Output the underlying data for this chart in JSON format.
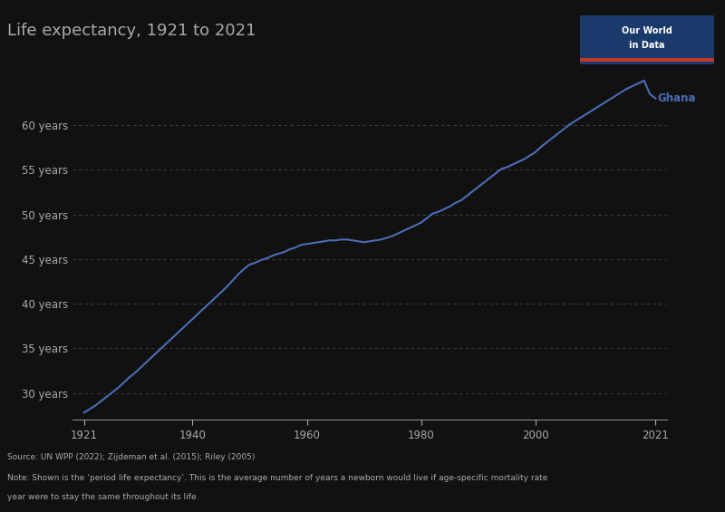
{
  "title": "Life expectancy, 1921 to 2021",
  "line_color": "#4C6DB5",
  "label": "Ghana",
  "label_color": "#4C6DB5",
  "background_color": "#111111",
  "text_color": "#aaaaaa",
  "grid_color": "#aaaaaa",
  "yticks": [
    30,
    35,
    40,
    45,
    50,
    55,
    60
  ],
  "ytick_labels": [
    "30 years",
    "35 years",
    "40 years",
    "45 years",
    "50 years",
    "55 years",
    "60 years"
  ],
  "xticks": [
    1921,
    1940,
    1960,
    1980,
    2000,
    2021
  ],
  "ylim": [
    27,
    66
  ],
  "xlim": [
    1919,
    2023
  ],
  "source_text": "Source: UN WPP (2022); Zijdeman et al. (2015); Riley (2005)",
  "note_line1": "Note: Shown is the ‘period life expectancy’. This is the average number of years a newborn would live if age-specific mortality rate",
  "note_line2": "year were to stay the same throughout its life.",
  "owid_box_color": "#1a3a6b",
  "owid_red": "#c0392b",
  "years": [
    1921,
    1922,
    1923,
    1924,
    1925,
    1926,
    1927,
    1928,
    1929,
    1930,
    1931,
    1932,
    1933,
    1934,
    1935,
    1936,
    1937,
    1938,
    1939,
    1940,
    1941,
    1942,
    1943,
    1944,
    1945,
    1946,
    1947,
    1948,
    1949,
    1950,
    1951,
    1952,
    1953,
    1954,
    1955,
    1956,
    1957,
    1958,
    1959,
    1960,
    1961,
    1962,
    1963,
    1964,
    1965,
    1966,
    1967,
    1968,
    1969,
    1970,
    1971,
    1972,
    1973,
    1974,
    1975,
    1976,
    1977,
    1978,
    1979,
    1980,
    1981,
    1982,
    1983,
    1984,
    1985,
    1986,
    1987,
    1988,
    1989,
    1990,
    1991,
    1992,
    1993,
    1994,
    1995,
    1996,
    1997,
    1998,
    1999,
    2000,
    2001,
    2002,
    2003,
    2004,
    2005,
    2006,
    2007,
    2008,
    2009,
    2010,
    2011,
    2012,
    2013,
    2014,
    2015,
    2016,
    2017,
    2018,
    2019,
    2020,
    2021
  ],
  "values": [
    27.8,
    28.2,
    28.6,
    29.1,
    29.6,
    30.1,
    30.6,
    31.2,
    31.8,
    32.3,
    32.9,
    33.5,
    34.1,
    34.7,
    35.3,
    35.9,
    36.5,
    37.1,
    37.7,
    38.3,
    38.9,
    39.5,
    40.1,
    40.7,
    41.3,
    41.9,
    42.6,
    43.3,
    43.9,
    44.4,
    44.6,
    44.9,
    45.1,
    45.4,
    45.6,
    45.8,
    46.1,
    46.3,
    46.6,
    46.7,
    46.8,
    46.9,
    47.0,
    47.1,
    47.1,
    47.2,
    47.2,
    47.1,
    47.0,
    46.9,
    47.0,
    47.1,
    47.2,
    47.4,
    47.6,
    47.9,
    48.2,
    48.5,
    48.8,
    49.1,
    49.6,
    50.1,
    50.3,
    50.6,
    50.9,
    51.3,
    51.6,
    52.1,
    52.6,
    53.1,
    53.6,
    54.1,
    54.6,
    55.1,
    55.3,
    55.6,
    55.9,
    56.2,
    56.6,
    57.0,
    57.6,
    58.1,
    58.6,
    59.1,
    59.6,
    60.1,
    60.5,
    60.9,
    61.3,
    61.7,
    62.1,
    62.5,
    62.9,
    63.3,
    63.7,
    64.1,
    64.4,
    64.7,
    65.0,
    63.5,
    63.0
  ]
}
